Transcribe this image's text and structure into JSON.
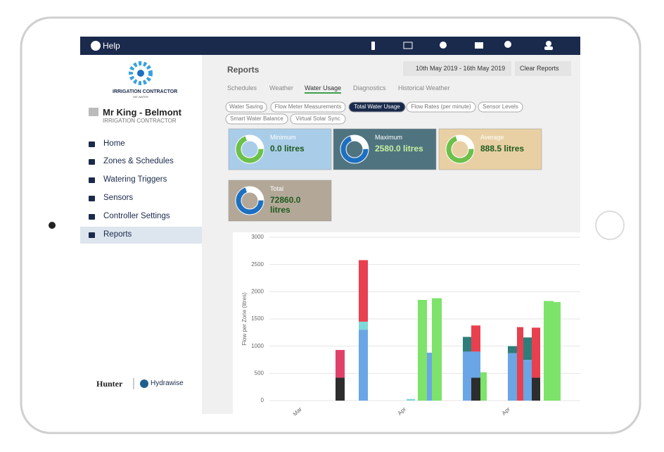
{
  "topbar": {
    "help": "Help"
  },
  "sidebar": {
    "logo_text": "IRRIGATION CONTRACTOR",
    "logo_sub": "WE WATER",
    "account_name": "Mr King - Belmont",
    "account_role": "IRRIGATION CONTRACTOR",
    "menu": [
      "Home",
      "Zones & Schedules",
      "Watering Triggers",
      "Sensors",
      "Controller Settings",
      "Reports"
    ],
    "active_menu": 5,
    "footer": [
      "Hunter",
      "Hydrawise"
    ]
  },
  "page": {
    "title": "Reports",
    "date_range": "10th May 2019 - 16th May 2019",
    "clear": "Clear Reports",
    "tabs": [
      "Schedules",
      "Weather",
      "Water Usage",
      "Diagnostics",
      "Historical Weather"
    ],
    "active_tab": 2,
    "filters": [
      "Water Saving",
      "Flow Meter Measurements",
      "Total Water Usage",
      "Flow Rates (per minute)",
      "Sensor Levels",
      "Smart Water Balance",
      "Virtual Solar Sync"
    ],
    "active_filter": 2,
    "cards": [
      {
        "label": "Minimum",
        "value": "0.0 litres",
        "color": "#a9cde8"
      },
      {
        "label": "Maximum",
        "value": "2580.0 litres",
        "color": "#4f7480"
      },
      {
        "label": "Average",
        "value": "888.5 litres",
        "color": "#e8d0a4"
      },
      {
        "label": "Total",
        "value": "72860.0 litres",
        "color": "#b3a898"
      }
    ]
  },
  "chart_data": {
    "type": "bar",
    "stacked": true,
    "y_label": "Flow per Zone (litres)",
    "ylim": [
      0,
      3000
    ],
    "yticks": [
      0,
      500,
      1000,
      1500,
      2000,
      2500,
      3000
    ],
    "grid": true,
    "x_labels": [
      "Mar",
      "Apr",
      "Apr"
    ],
    "stacks": [
      {
        "segments": [
          {
            "value": 420,
            "color": "#2d2d2d"
          },
          {
            "value": 510,
            "color": "#e0416a"
          }
        ]
      },
      {
        "segments": [
          {
            "value": 1300,
            "color": "#6aa6e6"
          },
          {
            "value": 150,
            "color": "#7fd8d8"
          },
          {
            "value": 1130,
            "color": "#e8404f"
          }
        ]
      },
      {
        "segments": [
          {
            "value": 30,
            "color": "#7fd8d8"
          }
        ]
      },
      {
        "segments": [
          {
            "value": 1850,
            "color": "#7de36a"
          }
        ]
      },
      {
        "segments": [
          {
            "value": 880,
            "color": "#6aa6e6"
          }
        ]
      },
      {
        "segments": [
          {
            "value": 1880,
            "color": "#7de36a"
          }
        ]
      },
      {
        "segments": [
          {
            "value": 900,
            "color": "#6aa6e6"
          },
          {
            "value": 270,
            "color": "#2e7d7a"
          }
        ]
      },
      {
        "segments": [
          {
            "value": 420,
            "color": "#2d2d2d"
          },
          {
            "value": 480,
            "color": "#6aa6e6"
          },
          {
            "value": 480,
            "color": "#e8404f"
          }
        ]
      },
      {
        "segments": [
          {
            "value": 520,
            "color": "#7de36a"
          }
        ]
      },
      {
        "segments": [
          {
            "value": 870,
            "color": "#6aa6e6"
          },
          {
            "value": 130,
            "color": "#2e7d7a"
          }
        ]
      },
      {
        "segments": [
          {
            "value": 1350,
            "color": "#e8404f"
          }
        ]
      },
      {
        "segments": [
          {
            "value": 750,
            "color": "#6aa6e6"
          },
          {
            "value": 410,
            "color": "#2e7d7a"
          }
        ]
      },
      {
        "segments": [
          {
            "value": 420,
            "color": "#2d2d2d"
          },
          {
            "value": 920,
            "color": "#e8404f"
          }
        ]
      },
      {
        "segments": [
          {
            "value": 1830,
            "color": "#7de36a"
          }
        ]
      },
      {
        "segments": [
          {
            "value": 1810,
            "color": "#7de36a"
          }
        ]
      }
    ]
  }
}
